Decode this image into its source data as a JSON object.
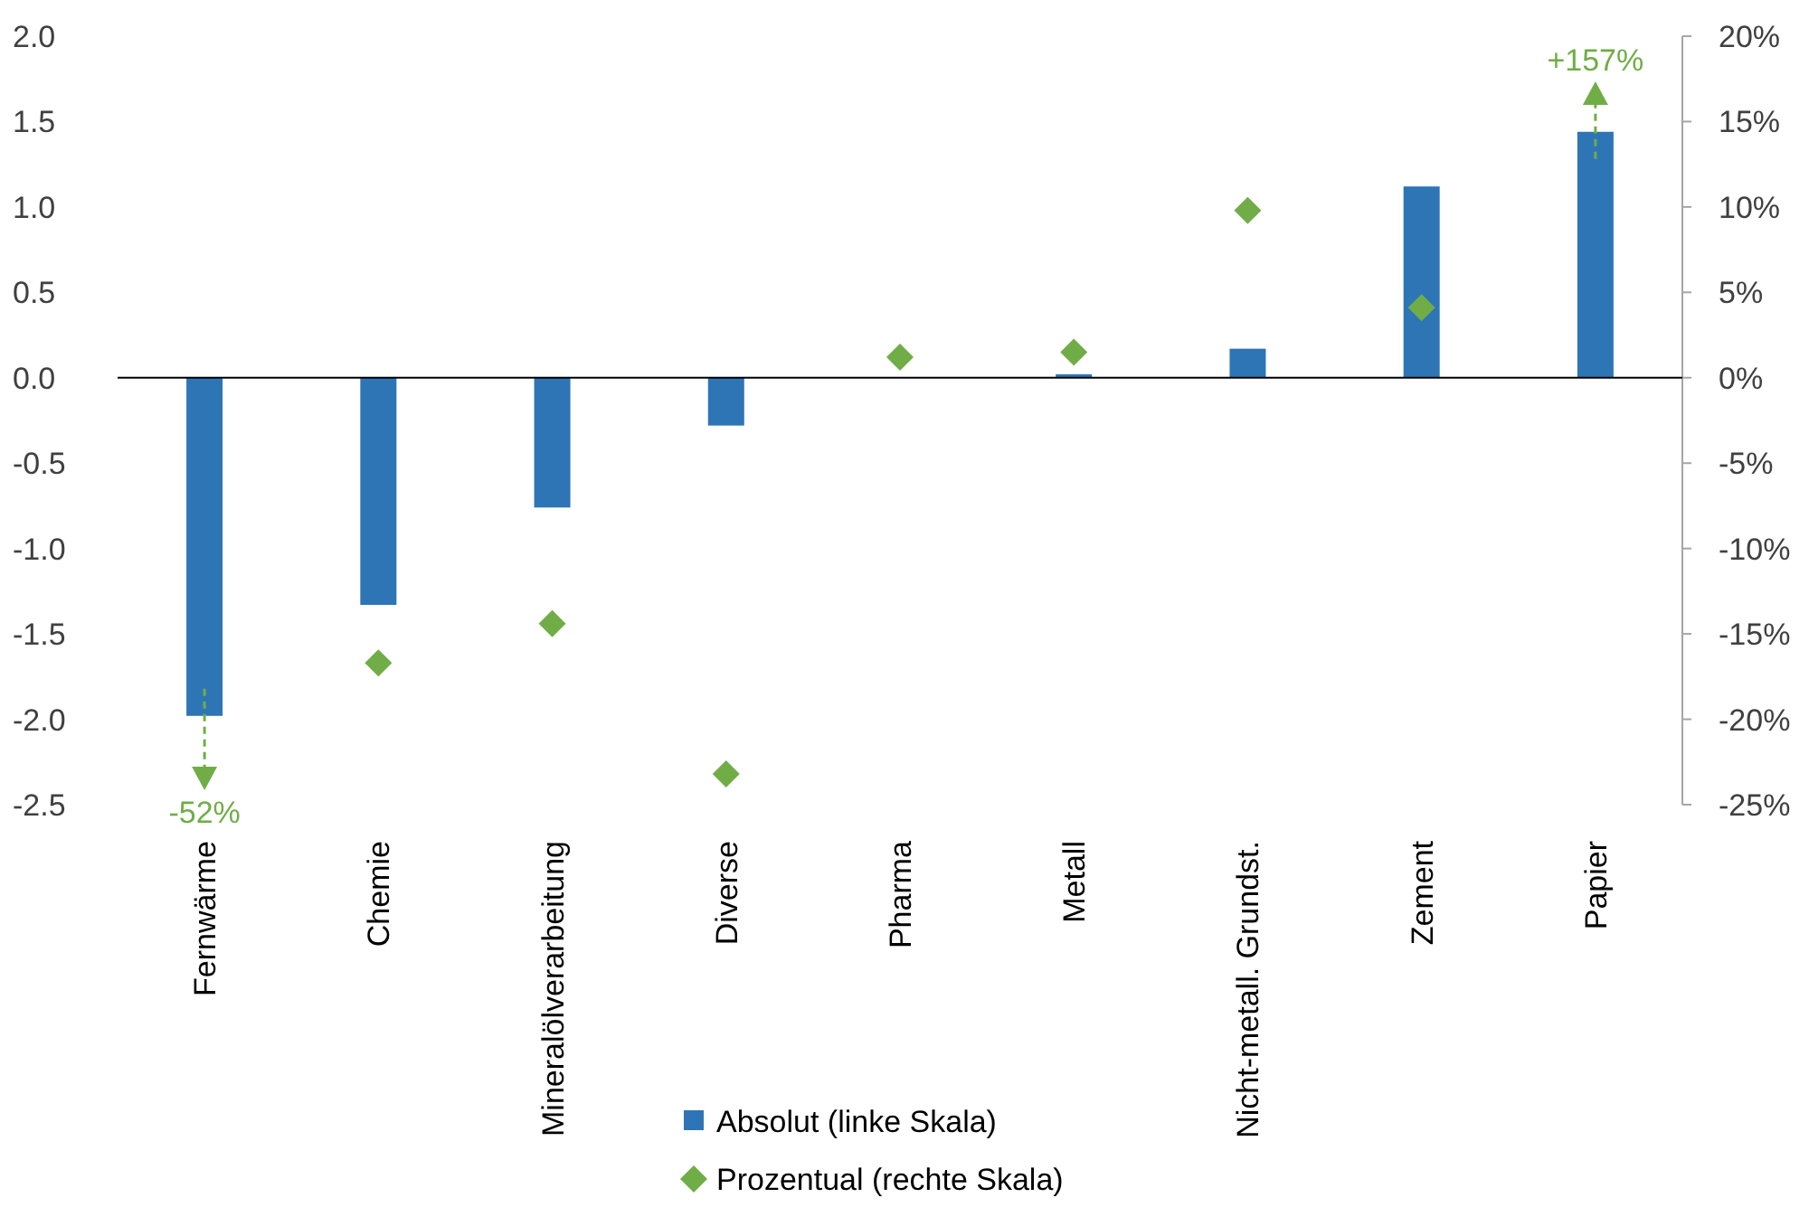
{
  "chart_data": {
    "type": "bar",
    "categories": [
      "Fernwärme",
      "Chemie",
      "Mineralölverarbeitung",
      "Diverse",
      "Pharma",
      "Metall",
      "Nicht-metall. Grundst.",
      "Zement",
      "Papier"
    ],
    "series": [
      {
        "name": "Absolut (linke Skala)",
        "color": "#2e75b6",
        "values": [
          -1.98,
          -1.33,
          -0.76,
          -0.28,
          0.0,
          0.02,
          0.17,
          1.12,
          1.44
        ]
      },
      {
        "name": "Prozentual (rechte Skala)",
        "type": "scatter",
        "axis": "y2",
        "color": "#70ad47",
        "values": [
          null,
          -16.7,
          -14.4,
          -23.2,
          1.2,
          1.5,
          9.8,
          4.1,
          null
        ]
      }
    ],
    "ylim": [
      -2.5,
      2.0
    ],
    "yticks": [
      {
        "value": -2.5,
        "label": "-2.5"
      },
      {
        "value": -2,
        "label": "-2.0"
      },
      {
        "value": -1.5,
        "label": "-1.5"
      },
      {
        "value": -1,
        "label": "-1.0"
      },
      {
        "value": -0.5,
        "label": "-0.5"
      },
      {
        "value": 0,
        "label": "0.0"
      },
      {
        "value": 0.5,
        "label": "0.5"
      },
      {
        "value": 1,
        "label": "1.0"
      },
      {
        "value": 1.5,
        "label": "1.5"
      },
      {
        "value": 2,
        "label": "2.0"
      }
    ],
    "y2lim": [
      -25,
      20
    ],
    "y2ticks": [
      {
        "value": -25,
        "label": "-25%"
      },
      {
        "value": -20,
        "label": "-20%"
      },
      {
        "value": -15,
        "label": "-15%"
      },
      {
        "value": -10,
        "label": "-10%"
      },
      {
        "value": -5,
        "label": "-5%"
      },
      {
        "value": 0,
        "label": "0%"
      },
      {
        "value": 5,
        "label": "5%"
      },
      {
        "value": 10,
        "label": "10%"
      },
      {
        "value": 15,
        "label": "15%"
      },
      {
        "value": 20,
        "label": "20%"
      }
    ],
    "annotations": [
      "-52%",
      "+157%"
    ],
    "marker": "diamond",
    "legend": "bottom"
  }
}
